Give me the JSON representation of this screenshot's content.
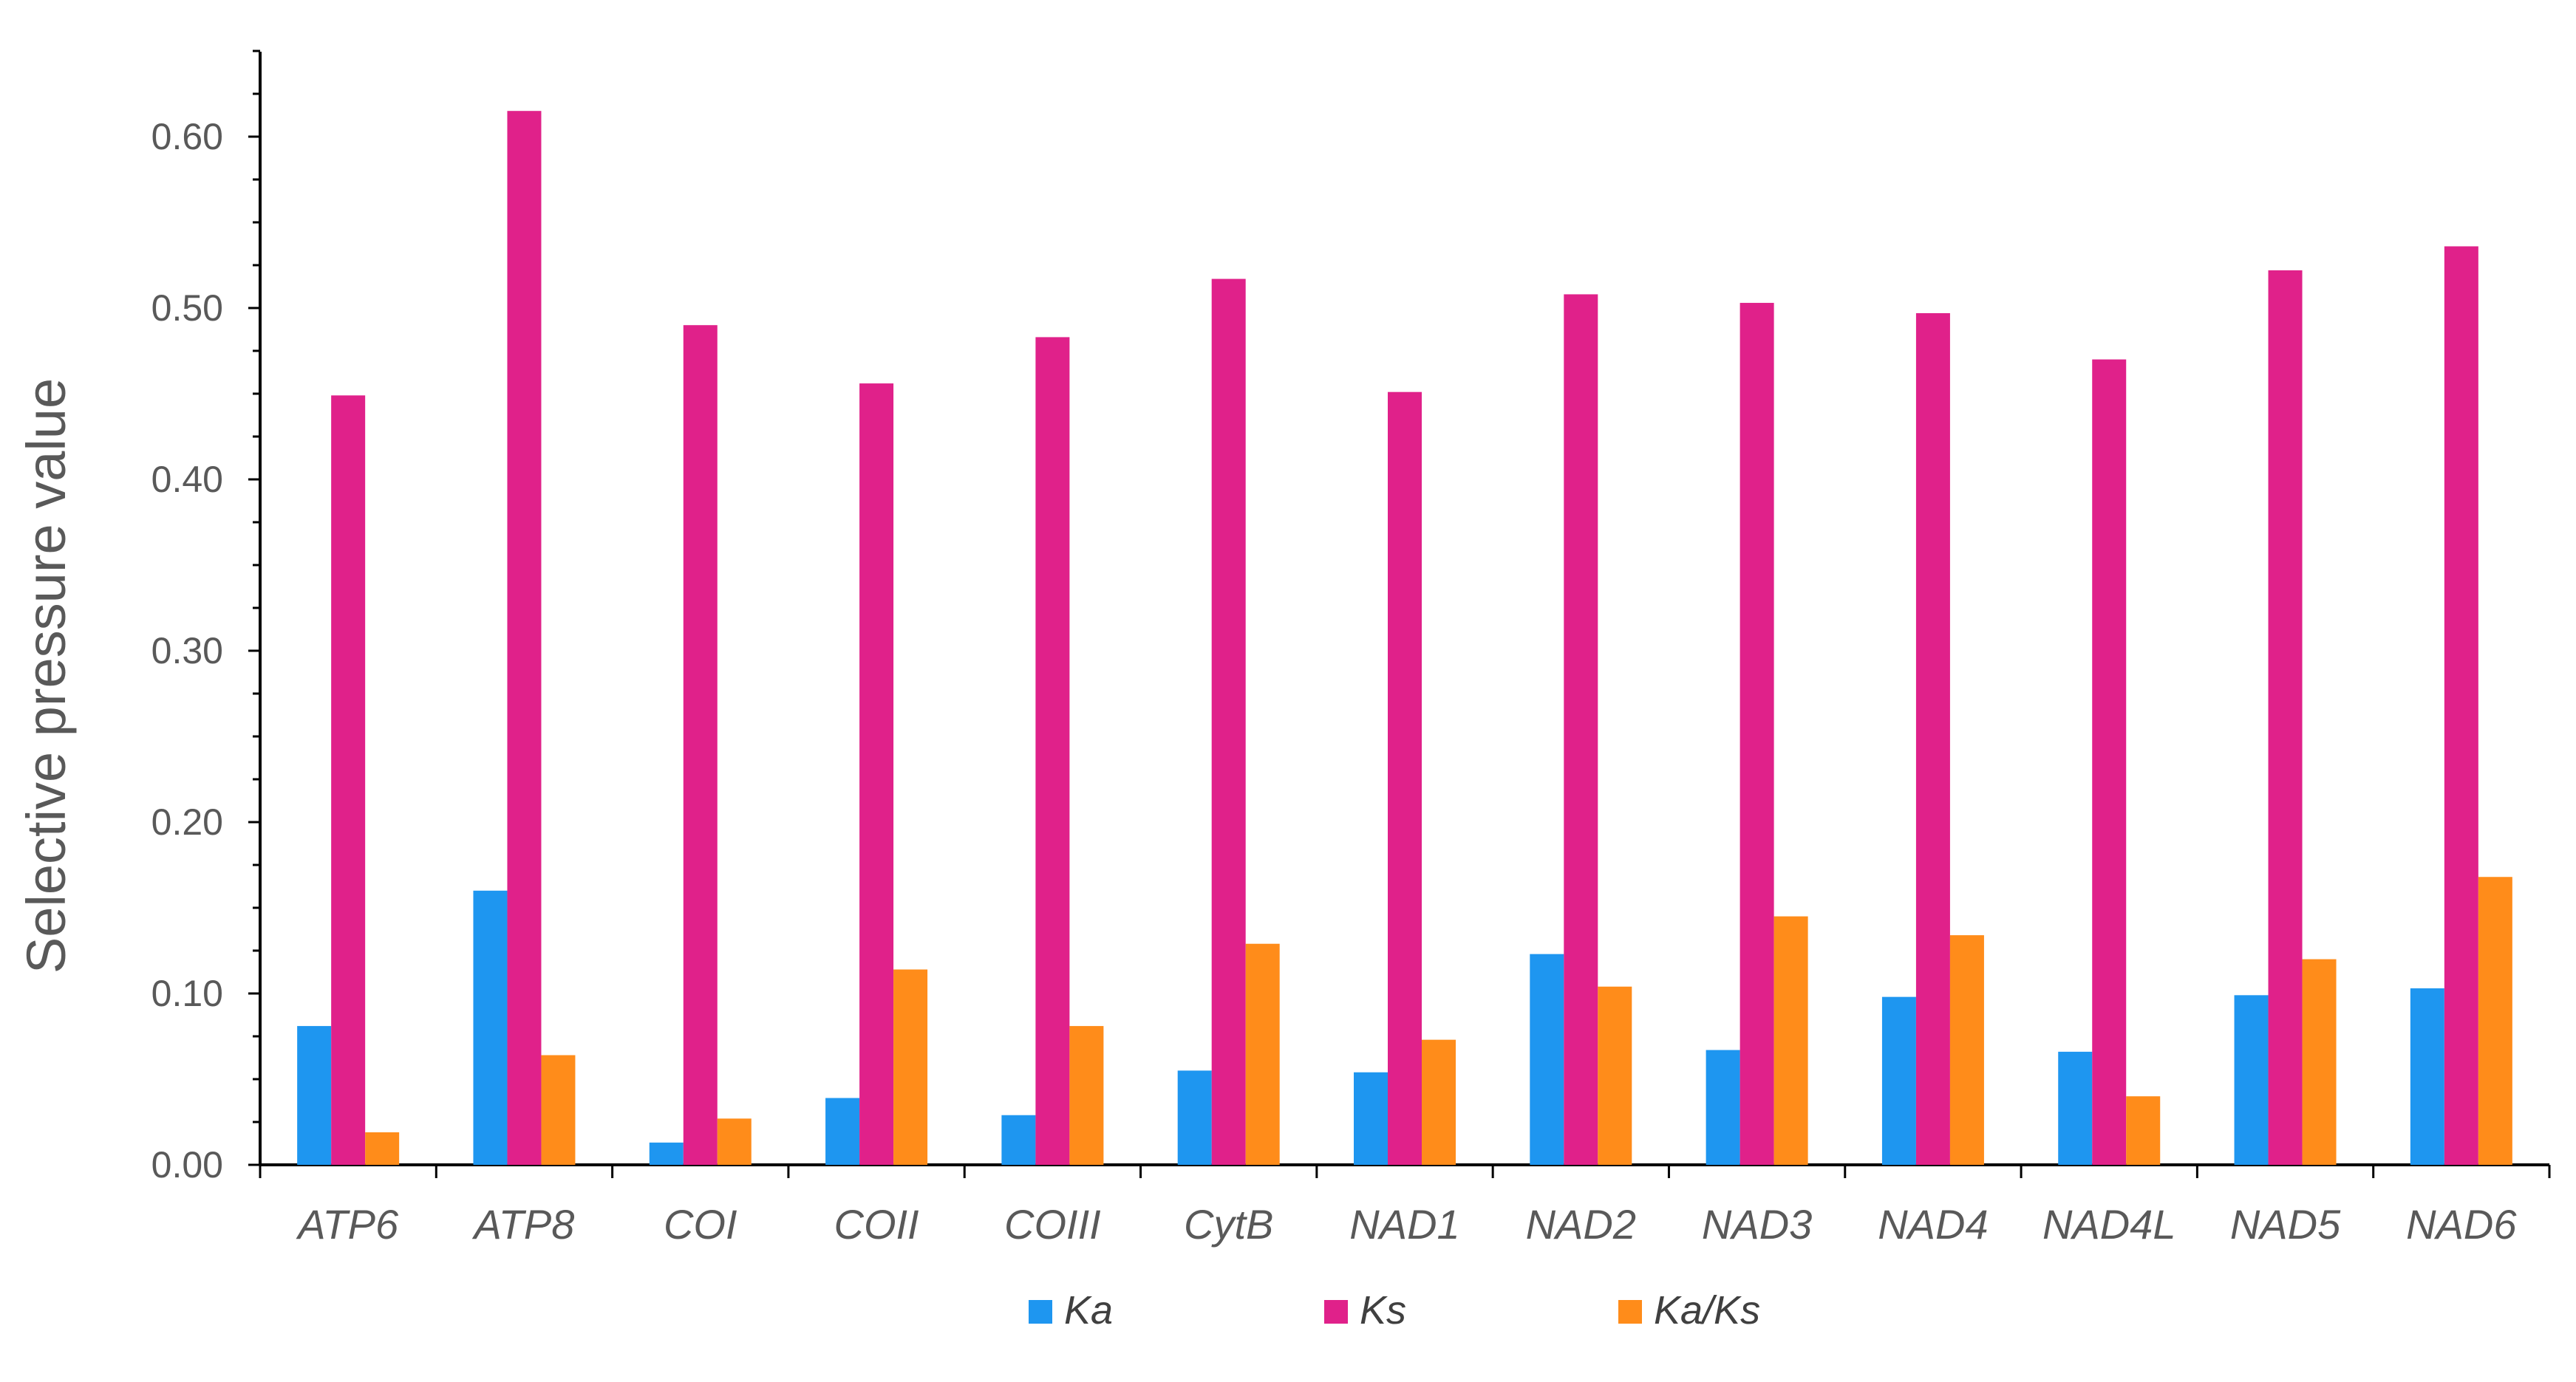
{
  "chart_data": {
    "type": "bar",
    "title": "",
    "xlabel": "",
    "ylabel": "Selective pressure value",
    "ylim": [
      0,
      0.65
    ],
    "yticks": [
      "0.00",
      "0.10",
      "0.20",
      "0.30",
      "0.40",
      "0.50",
      "0.60"
    ],
    "grid": false,
    "legend_position": "bottom",
    "categories": [
      "ATP6",
      "ATP8",
      "COI",
      "COII",
      "COIII",
      "CytB",
      "NAD1",
      "NAD2",
      "NAD3",
      "NAD4",
      "NAD4L",
      "NAD5",
      "NAD6"
    ],
    "series": [
      {
        "name": "Ka",
        "color": "#1E96F0",
        "values": [
          0.081,
          0.16,
          0.013,
          0.039,
          0.029,
          0.055,
          0.054,
          0.123,
          0.067,
          0.098,
          0.066,
          0.099,
          0.103
        ]
      },
      {
        "name": "Ks",
        "color": "#E0218A",
        "values": [
          0.449,
          0.615,
          0.49,
          0.456,
          0.483,
          0.517,
          0.451,
          0.508,
          0.503,
          0.497,
          0.47,
          0.522,
          0.536
        ]
      },
      {
        "name": "Ka/Ks",
        "color": "#FF8C1A",
        "values": [
          0.019,
          0.064,
          0.027,
          0.114,
          0.081,
          0.129,
          0.073,
          0.104,
          0.145,
          0.134,
          0.04,
          0.12,
          0.168
        ]
      }
    ]
  }
}
